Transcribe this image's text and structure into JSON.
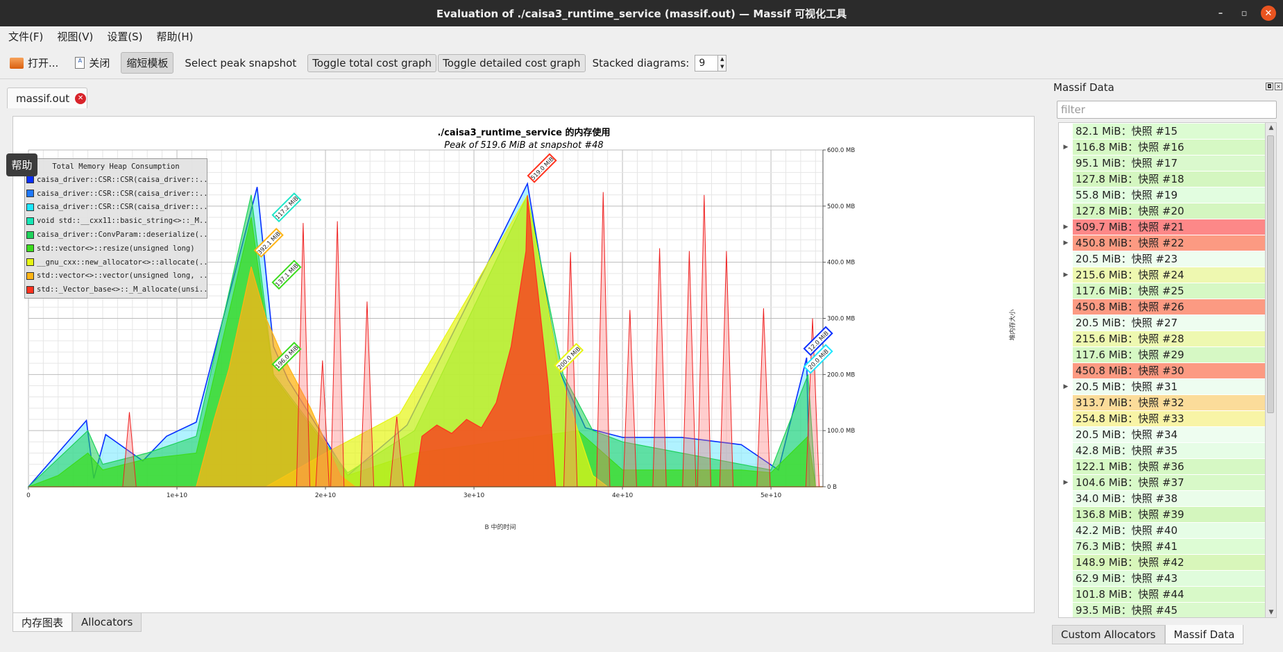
{
  "window": {
    "title": "Evaluation of ./caisa3_runtime_service (massif.out) — Massif 可视化工具",
    "controls": [
      "–",
      "▫",
      "✕"
    ]
  },
  "menu": [
    "文件(F)",
    "视图(V)",
    "设置(S)",
    "帮助(H)"
  ],
  "toolbar": {
    "open_label": "打开...",
    "close_label": "关闭",
    "shorten_label": "缩短模板",
    "select_peak_label": "Select peak snapshot",
    "toggle_total_label": "Toggle total cost graph",
    "toggle_detailed_label": "Toggle detailed cost graph",
    "stacked_label": "Stacked diagrams:",
    "stacked_value": "9"
  },
  "doc_tab": {
    "label": "massif.out"
  },
  "help_tooltip": "帮助",
  "chart_data": {
    "type": "area",
    "title": "./caisa3_runtime_service 的内存使用",
    "subtitle": "Peak of 519.6 MiB at snapshot #48",
    "xlabel": "B 中的时间",
    "ylabel": "堆内存大小",
    "x_ticks": [
      "0",
      "1e+10",
      "2e+10",
      "3e+10",
      "4e+10",
      "5e+10"
    ],
    "y_ticks": [
      "0 B",
      "100.0 MB",
      "200.0 MB",
      "300.0 MB",
      "400.0 MB",
      "500.0 MB",
      "600.0 MB"
    ],
    "xlim": [
      0,
      53500000000
    ],
    "ylim": [
      0,
      600
    ],
    "legend_title": "Total Memory Heap Consumption",
    "legend": [
      {
        "label": "caisa_driver::CSR::CSR(caisa_driver::...",
        "color": "#0a2fff"
      },
      {
        "label": "caisa_driver::CSR::CSR(caisa_driver::...",
        "color": "#1e78ff"
      },
      {
        "label": "caisa_driver::CSR::CSR(caisa_driver::...",
        "color": "#1ee6ff"
      },
      {
        "label": "void std::__cxx11::basic_string<>::_M...",
        "color": "#14e6b4"
      },
      {
        "label": "caisa_driver::ConvParam::deserialize(...",
        "color": "#1ed25a"
      },
      {
        "label": "std::vector<>::resize(unsigned long)",
        "color": "#3cdc1e"
      },
      {
        "label": "__gnu_cxx::new_allocator<>::allocate(...",
        "color": "#e6f514"
      },
      {
        "label": "std::vector<>::vector(unsigned long, ...",
        "color": "#ffb414"
      },
      {
        "label": "std::_Vector_base<>::_M_allocate(unsi...",
        "color": "#ff321e"
      }
    ],
    "annotations": [
      {
        "text": "117.2 MiB",
        "color": "#1ee6c8",
        "x": 16800000000,
        "y": 478
      },
      {
        "text": "392.1 MiB",
        "color": "#ffb414",
        "x": 15600000000,
        "y": 415
      },
      {
        "text": "137.1 MiB",
        "color": "#3cdc1e",
        "x": 16800000000,
        "y": 358
      },
      {
        "text": "196.0 MiB",
        "color": "#3cdc1e",
        "x": 16800000000,
        "y": 212
      },
      {
        "text": "519.0 MiB",
        "color": "#ff321e",
        "x": 34000000000,
        "y": 548
      },
      {
        "text": "200.0 MiB",
        "color": "#e6f514",
        "x": 35800000000,
        "y": 210
      },
      {
        "text": "12.0 MiB",
        "color": "#0a2fff",
        "x": 52600000000,
        "y": 240
      },
      {
        "text": "20.0 MiB",
        "color": "#1ee6ff",
        "x": 52600000000,
        "y": 208
      }
    ],
    "series": [
      {
        "name": "std::_Vector_base<>::_M_allocate(unsi...",
        "color": "#ff321e",
        "points": [
          [
            0,
            0
          ],
          [
            11300000000,
            0
          ],
          [
            26000000000,
            0
          ],
          [
            26500000000,
            90
          ],
          [
            27500000000,
            110
          ],
          [
            28500000000,
            95
          ],
          [
            29500000000,
            120
          ],
          [
            30500000000,
            105
          ],
          [
            31500000000,
            150
          ],
          [
            32500000000,
            250
          ],
          [
            33500000000,
            420
          ],
          [
            33600000000,
            519
          ],
          [
            34000000000,
            420
          ],
          [
            35000000000,
            180
          ],
          [
            35500000000,
            0
          ],
          [
            53500000000,
            0
          ]
        ]
      },
      {
        "name": "std::vector<>::vector(unsigned long, ...",
        "color": "#ffb414",
        "points": [
          [
            0,
            0
          ],
          [
            11300000000,
            0
          ],
          [
            12500000000,
            120
          ],
          [
            13500000000,
            210
          ],
          [
            15000000000,
            392
          ],
          [
            16000000000,
            300
          ],
          [
            17000000000,
            240
          ],
          [
            19000000000,
            140
          ],
          [
            21000000000,
            20
          ],
          [
            22000000000,
            0
          ],
          [
            53500000000,
            0
          ]
        ]
      },
      {
        "name": "__gnu_cxx::new_allocator<>::allocate(...",
        "color": "#e6f514",
        "points": [
          [
            0,
            0
          ],
          [
            16000000000,
            0
          ],
          [
            20000000000,
            60
          ],
          [
            25000000000,
            130
          ],
          [
            33600000000,
            519
          ],
          [
            35800000000,
            200
          ],
          [
            37000000000,
            100
          ],
          [
            38000000000,
            20
          ],
          [
            39000000000,
            0
          ],
          [
            53500000000,
            0
          ]
        ]
      },
      {
        "name": "std::vector<>::resize(unsigned long)",
        "color": "#3cdc1e",
        "points": [
          [
            0,
            0
          ],
          [
            2000000000,
            20
          ],
          [
            4000000000,
            60
          ],
          [
            5000000000,
            30
          ],
          [
            8000000000,
            50
          ],
          [
            11300000000,
            60
          ],
          [
            15000000000,
            480
          ],
          [
            16500000000,
            196
          ],
          [
            21500000000,
            20
          ],
          [
            26000000000,
            60
          ],
          [
            37000000000,
            100
          ],
          [
            40000000000,
            30
          ],
          [
            48000000000,
            30
          ],
          [
            50000000000,
            25
          ],
          [
            52500000000,
            90
          ],
          [
            53000000000,
            0
          ]
        ]
      },
      {
        "name": "caisa_driver::ConvParam::deserialize(...",
        "color": "#1ed25a",
        "points": [
          [
            0,
            0
          ],
          [
            4000000000,
            100
          ],
          [
            5000000000,
            40
          ],
          [
            8000000000,
            60
          ],
          [
            11300000000,
            90
          ],
          [
            15000000000,
            520
          ],
          [
            16500000000,
            200
          ],
          [
            21500000000,
            25
          ],
          [
            26000000000,
            100
          ],
          [
            33600000000,
            519
          ],
          [
            36000000000,
            200
          ],
          [
            38000000000,
            100
          ],
          [
            40000000000,
            80
          ],
          [
            50000000000,
            30
          ],
          [
            52500000000,
            200
          ],
          [
            53000000000,
            0
          ]
        ]
      },
      {
        "name": "caisa_driver::CSR::CSR(caisa_driver::...",
        "color": "#0a2fff",
        "points": [
          [
            0,
            0
          ],
          [
            3900000000,
            118
          ],
          [
            4400000000,
            15
          ],
          [
            5200000000,
            93
          ],
          [
            7700000000,
            46
          ],
          [
            9300000000,
            90
          ],
          [
            11300000000,
            115
          ],
          [
            15400000000,
            534
          ],
          [
            16500000000,
            250
          ],
          [
            17500000000,
            190
          ],
          [
            21500000000,
            20
          ],
          [
            25500000000,
            110
          ],
          [
            33600000000,
            540
          ],
          [
            35700000000,
            210
          ],
          [
            37500000000,
            105
          ],
          [
            40000000000,
            88
          ],
          [
            44000000000,
            88
          ],
          [
            48000000000,
            75
          ],
          [
            50500000000,
            30
          ],
          [
            52400000000,
            230
          ],
          [
            52600000000,
            0
          ]
        ]
      }
    ],
    "spikes": {
      "name": "std::_Vector_base<>::_M_allocate(unsi...",
      "color": "#ff6f6f",
      "peaks": [
        [
          6800000000,
          133
        ],
        [
          18500000000,
          470
        ],
        [
          19800000000,
          225
        ],
        [
          20800000000,
          473
        ],
        [
          22800000000,
          330
        ],
        [
          24800000000,
          125
        ],
        [
          36500000000,
          418
        ],
        [
          38700000000,
          525
        ],
        [
          40500000000,
          315
        ],
        [
          42500000000,
          425
        ],
        [
          44500000000,
          420
        ],
        [
          45500000000,
          520
        ],
        [
          47000000000,
          420
        ],
        [
          49500000000,
          318
        ],
        [
          52800000000,
          300
        ]
      ]
    }
  },
  "bottom_tabs": [
    "内存图表",
    "Allocators"
  ],
  "panel": {
    "title": "Massif Data",
    "filter_placeholder": "filter",
    "snapshots": [
      {
        "label": "82.1 MiB：快照 #15",
        "color": "#dcfcd2",
        "expand": false
      },
      {
        "label": "116.8 MiB：快照 #16",
        "color": "#d6f8c4",
        "expand": true
      },
      {
        "label": "95.1 MiB：快照 #17",
        "color": "#daf9cd",
        "expand": false
      },
      {
        "label": "127.8 MiB：快照 #18",
        "color": "#d4f6c0",
        "expand": false
      },
      {
        "label": "55.8 MiB：快照 #19",
        "color": "#e2fde0",
        "expand": false
      },
      {
        "label": "127.8 MiB：快照 #20",
        "color": "#d4f6c0",
        "expand": false
      },
      {
        "label": "509.7 MiB：快照 #21",
        "color": "#fd8888",
        "expand": true
      },
      {
        "label": "450.8 MiB：快照 #22",
        "color": "#fc9a82",
        "expand": true
      },
      {
        "label": "20.5 MiB：快照 #23",
        "color": "#eefdf0",
        "expand": false
      },
      {
        "label": "215.6 MiB：快照 #24",
        "color": "#eef8b0",
        "expand": true
      },
      {
        "label": "117.6 MiB：快照 #25",
        "color": "#d6f8c4",
        "expand": false
      },
      {
        "label": "450.8 MiB：快照 #26",
        "color": "#fc9a82",
        "expand": false
      },
      {
        "label": "20.5 MiB：快照 #27",
        "color": "#eefdf0",
        "expand": false
      },
      {
        "label": "215.6 MiB：快照 #28",
        "color": "#eef8b0",
        "expand": false
      },
      {
        "label": "117.6 MiB：快照 #29",
        "color": "#d6f8c4",
        "expand": false
      },
      {
        "label": "450.8 MiB：快照 #30",
        "color": "#fc9a82",
        "expand": false
      },
      {
        "label": "20.5 MiB：快照 #31",
        "color": "#eefdf0",
        "expand": true
      },
      {
        "label": "313.7 MiB：快照 #32",
        "color": "#fbdc9a",
        "expand": false
      },
      {
        "label": "254.8 MiB：快照 #33",
        "color": "#f8f4a6",
        "expand": false
      },
      {
        "label": "20.5 MiB：快照 #34",
        "color": "#eefdf0",
        "expand": false
      },
      {
        "label": "42.8 MiB：快照 #35",
        "color": "#e6fde6",
        "expand": false
      },
      {
        "label": "122.1 MiB：快照 #36",
        "color": "#d6f8c4",
        "expand": false
      },
      {
        "label": "104.6 MiB：快照 #37",
        "color": "#d8f9c8",
        "expand": true
      },
      {
        "label": "34.0 MiB：快照 #38",
        "color": "#eafdea",
        "expand": false
      },
      {
        "label": "136.8 MiB：快照 #39",
        "color": "#d4f6be",
        "expand": false
      },
      {
        "label": "42.2 MiB：快照 #40",
        "color": "#e6fde6",
        "expand": false
      },
      {
        "label": "76.3 MiB：快照 #41",
        "color": "#ddfcd4",
        "expand": false
      },
      {
        "label": "148.9 MiB：快照 #42",
        "color": "#d8f6ba",
        "expand": false
      },
      {
        "label": "62.9 MiB：快照 #43",
        "color": "#e0fcdc",
        "expand": false
      },
      {
        "label": "101.8 MiB：快照 #44",
        "color": "#d8f9c8",
        "expand": false
      },
      {
        "label": "93.5 MiB：快照 #45",
        "color": "#daf9cd",
        "expand": false
      }
    ],
    "bottom_tabs": [
      "Custom Allocators",
      "Massif Data"
    ]
  }
}
